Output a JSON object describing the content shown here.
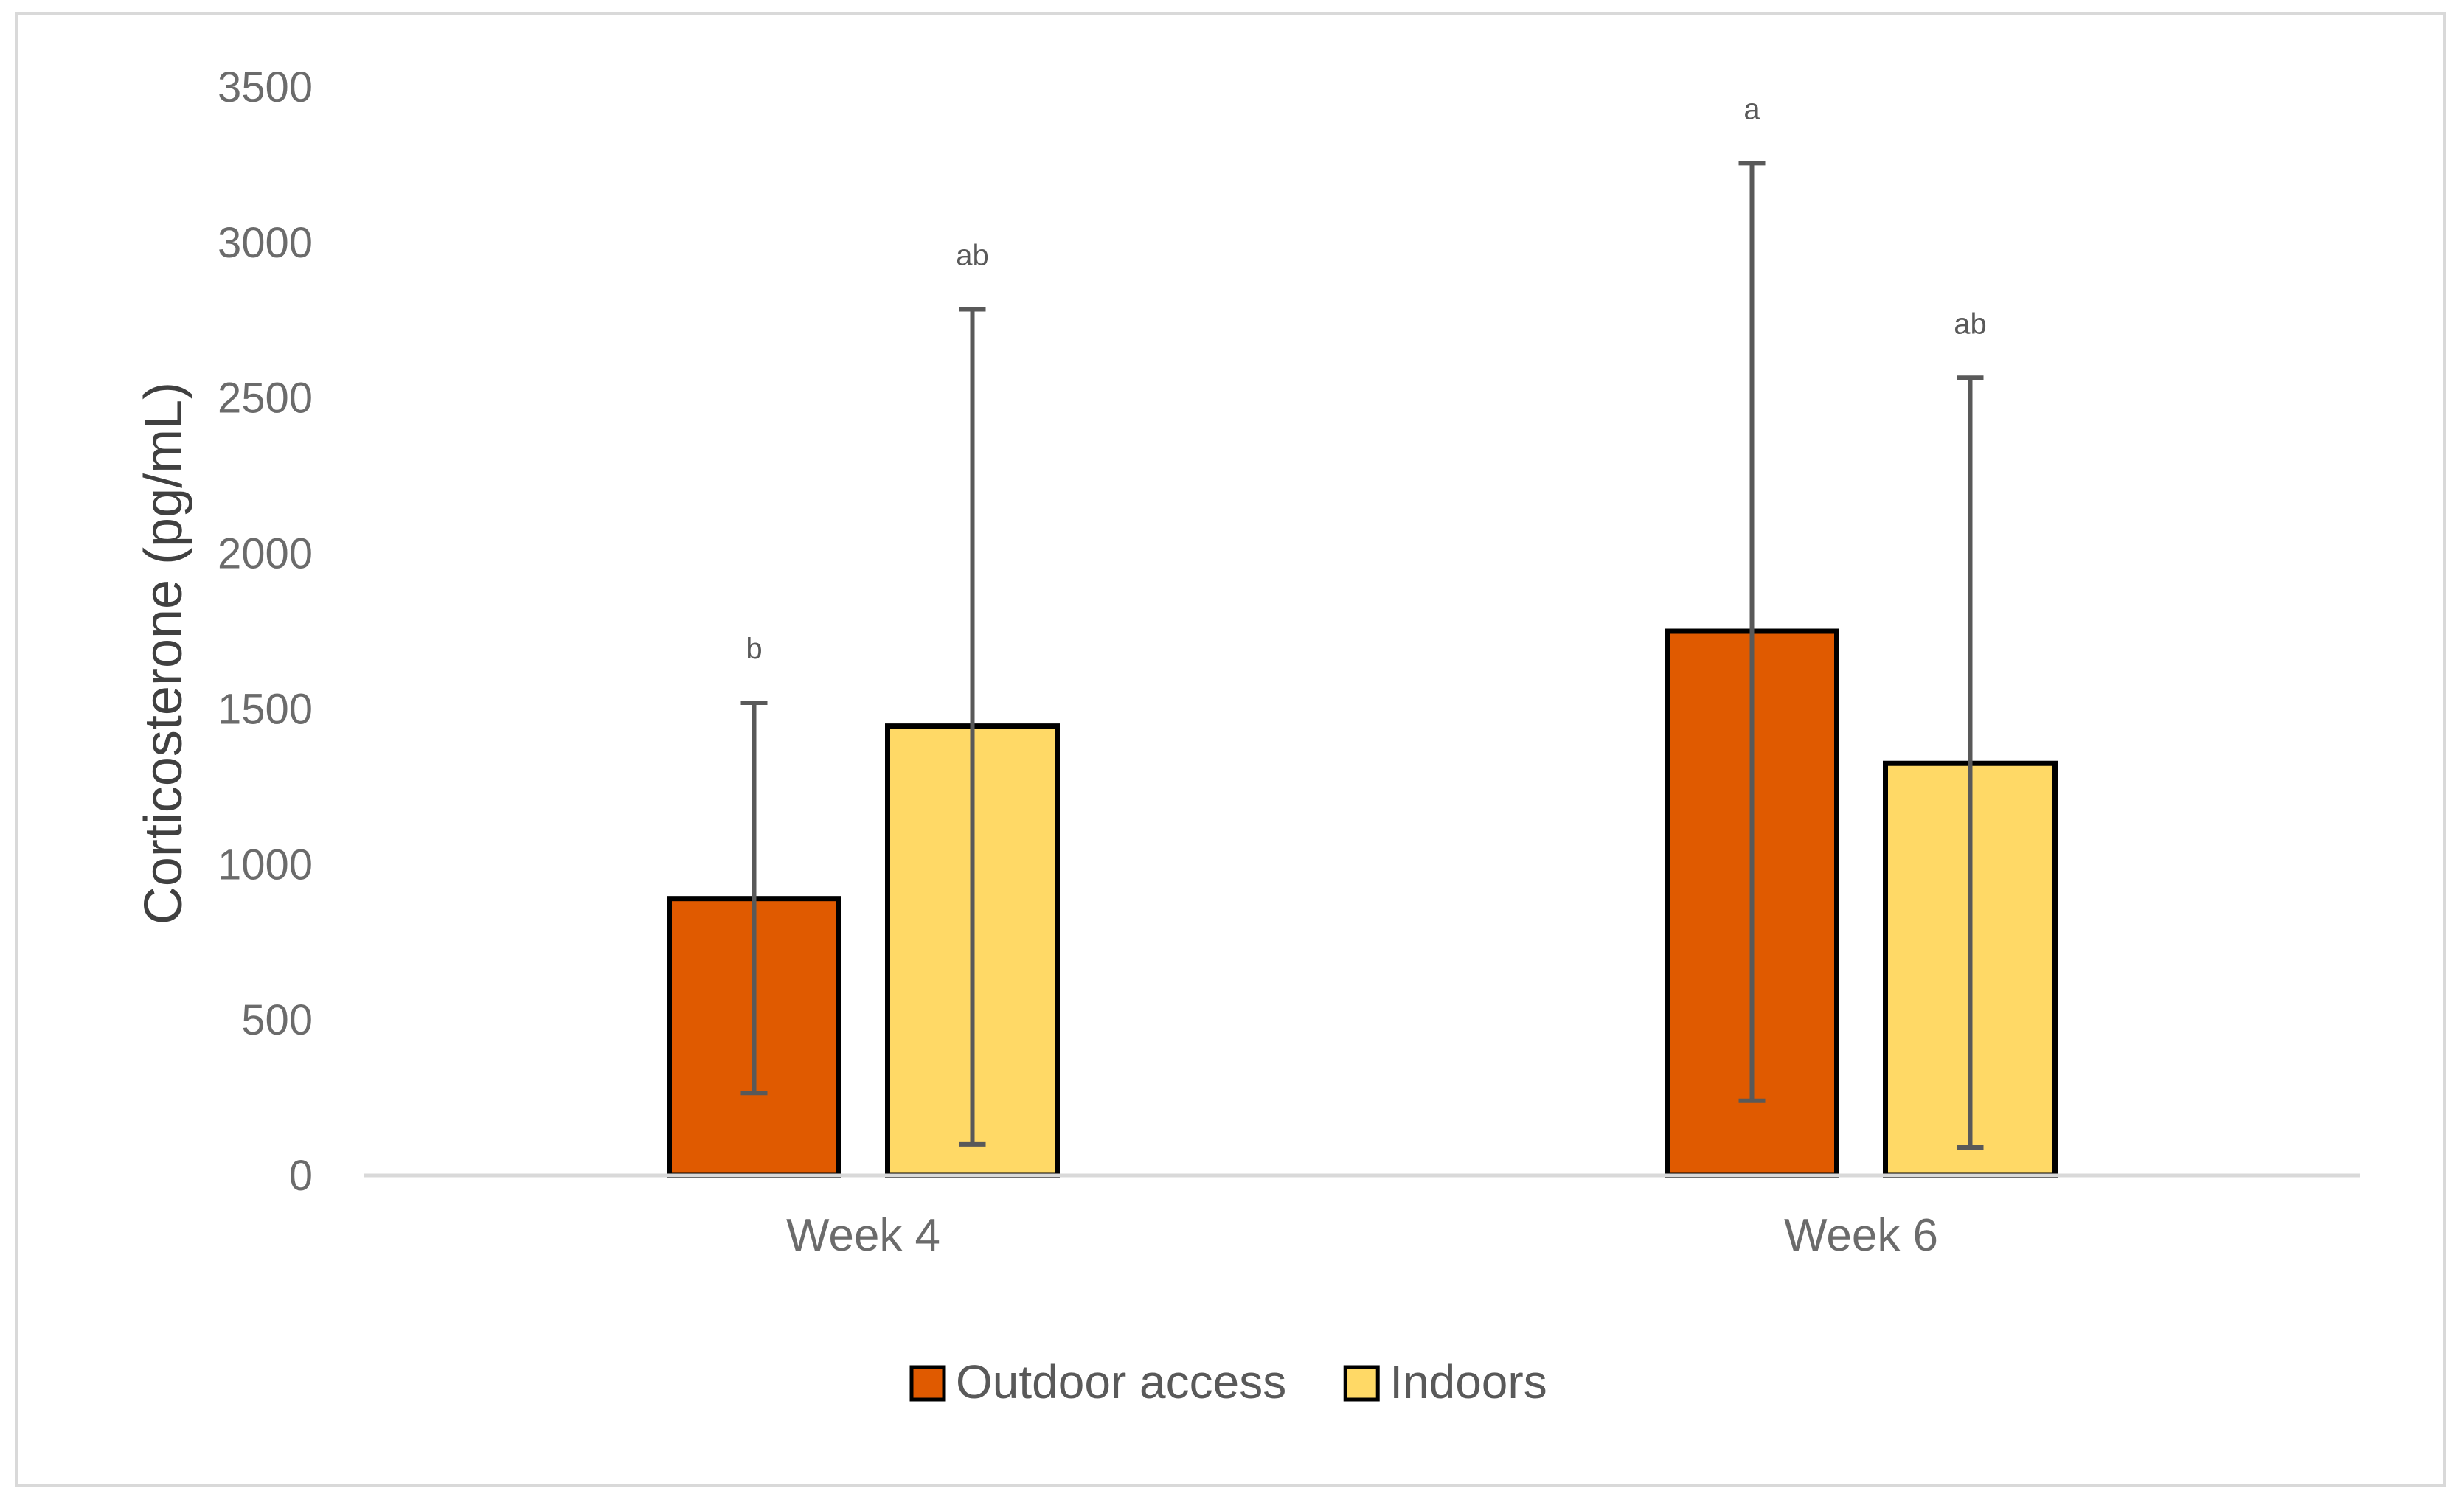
{
  "chart_data": {
    "type": "bar",
    "categories": [
      "Week 4",
      "Week 6"
    ],
    "series": [
      {
        "name": "Outdoor access",
        "color": "#e05a00",
        "values": [
          890,
          1750
        ],
        "error_low": [
          265,
          240
        ],
        "error_high": [
          1520,
          3255
        ],
        "sig_labels": [
          "b",
          "a"
        ]
      },
      {
        "name": "Indoors",
        "color": "#ffd966",
        "values": [
          1445,
          1325
        ],
        "error_low": [
          100,
          90
        ],
        "error_high": [
          2785,
          2565
        ],
        "sig_labels": [
          "ab",
          "ab"
        ]
      }
    ],
    "ylabel": "Corticosterone (pg/mL)",
    "xlabel": "",
    "ylim": [
      0,
      3500
    ],
    "yticks": [
      0,
      500,
      1000,
      1500,
      2000,
      2500,
      3000,
      3500
    ],
    "grid": false,
    "legend_position": "bottom"
  }
}
